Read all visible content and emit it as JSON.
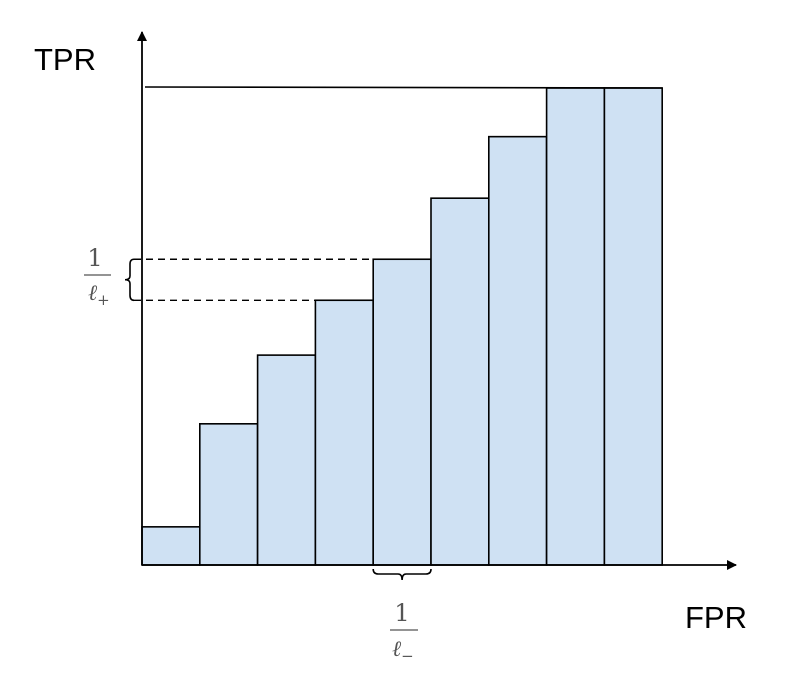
{
  "chart_data": {
    "type": "bar",
    "title": "",
    "description_kind": "ROC curve step area",
    "xlabel": "FPR",
    "ylabel": "TPR",
    "bar_count": 9,
    "values": [
      0.08,
      0.296,
      0.44,
      0.555,
      0.641,
      0.769,
      0.898,
      1.0,
      1.0
    ],
    "ylim": [
      0,
      1
    ],
    "top_reference_line": 1.0,
    "bar_color": "#cfe1f3",
    "bar_edge_color": "#000000",
    "annotations": {
      "y_step": {
        "numerator": "1",
        "denominator": "ℓ",
        "subscript": "+",
        "between_bars": [
          3,
          4
        ]
      },
      "x_step": {
        "numerator": "1",
        "denominator": "ℓ",
        "subscript": "−",
        "under_bar": 4
      }
    }
  }
}
